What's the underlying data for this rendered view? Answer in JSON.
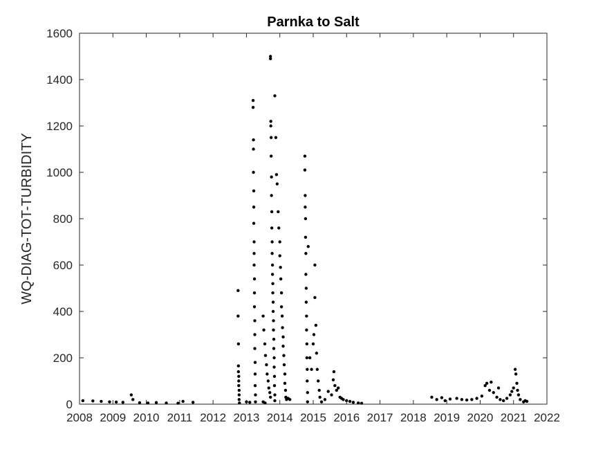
{
  "chart_data": {
    "type": "scatter",
    "title": "Parnka to Salt",
    "xlabel": "",
    "ylabel": "WQ-DIAG-TOT-TURBIDITY",
    "xlim": [
      2008,
      2022
    ],
    "ylim": [
      0,
      1600
    ],
    "xticks": [
      "2008",
      "2009",
      "2010",
      "2011",
      "2012",
      "2013",
      "2014",
      "2015",
      "2016",
      "2017",
      "2018",
      "2019",
      "2020",
      "2021",
      "2022"
    ],
    "yticks": [
      "0",
      "200",
      "400",
      "600",
      "800",
      "1000",
      "1200",
      "1400",
      "1600"
    ],
    "grid": false,
    "marker_color": "#000000",
    "series": [
      {
        "points": [
          [
            2008.1,
            15
          ],
          [
            2008.4,
            14
          ],
          [
            2008.65,
            12
          ],
          [
            2008.9,
            10
          ],
          [
            2009.1,
            9
          ],
          [
            2009.3,
            8
          ],
          [
            2009.55,
            40
          ],
          [
            2009.6,
            20
          ],
          [
            2009.8,
            6
          ],
          [
            2010.05,
            5
          ],
          [
            2010.3,
            7
          ],
          [
            2010.6,
            5
          ],
          [
            2010.95,
            4
          ],
          [
            2011.1,
            12
          ],
          [
            2011.4,
            8
          ],
          [
            2012.75,
            490
          ],
          [
            2012.75,
            380
          ],
          [
            2012.76,
            260
          ],
          [
            2012.76,
            165
          ],
          [
            2012.76,
            140
          ],
          [
            2012.77,
            120
          ],
          [
            2012.77,
            100
          ],
          [
            2012.77,
            80
          ],
          [
            2012.78,
            60
          ],
          [
            2012.78,
            40
          ],
          [
            2012.78,
            20
          ],
          [
            2012.79,
            5
          ],
          [
            2013.0,
            10
          ],
          [
            2013.1,
            8
          ],
          [
            2013.2,
            1310
          ],
          [
            2013.2,
            1280
          ],
          [
            2013.21,
            1140
          ],
          [
            2013.21,
            1100
          ],
          [
            2013.21,
            1000
          ],
          [
            2013.22,
            920
          ],
          [
            2013.22,
            850
          ],
          [
            2013.22,
            780
          ],
          [
            2013.23,
            700
          ],
          [
            2013.23,
            650
          ],
          [
            2013.23,
            600
          ],
          [
            2013.24,
            540
          ],
          [
            2013.24,
            480
          ],
          [
            2013.24,
            420
          ],
          [
            2013.25,
            360
          ],
          [
            2013.25,
            300
          ],
          [
            2013.25,
            240
          ],
          [
            2013.26,
            180
          ],
          [
            2013.26,
            130
          ],
          [
            2013.26,
            80
          ],
          [
            2013.27,
            40
          ],
          [
            2013.27,
            10
          ],
          [
            2013.5,
            380
          ],
          [
            2013.52,
            320
          ],
          [
            2013.55,
            260
          ],
          [
            2013.57,
            210
          ],
          [
            2013.6,
            170
          ],
          [
            2013.62,
            130
          ],
          [
            2013.65,
            100
          ],
          [
            2013.67,
            70
          ],
          [
            2013.7,
            50
          ],
          [
            2013.72,
            30
          ],
          [
            2013.5,
            10
          ],
          [
            2013.56,
            5
          ],
          [
            2013.72,
            1500
          ],
          [
            2013.72,
            1490
          ],
          [
            2013.73,
            1220
          ],
          [
            2013.73,
            1200
          ],
          [
            2013.74,
            1150
          ],
          [
            2013.74,
            1070
          ],
          [
            2013.75,
            980
          ],
          [
            2013.75,
            900
          ],
          [
            2013.76,
            830
          ],
          [
            2013.76,
            760
          ],
          [
            2013.77,
            700
          ],
          [
            2013.77,
            650
          ],
          [
            2013.78,
            600
          ],
          [
            2013.78,
            560
          ],
          [
            2013.79,
            520
          ],
          [
            2013.79,
            480
          ],
          [
            2013.8,
            440
          ],
          [
            2013.8,
            400
          ],
          [
            2013.81,
            360
          ],
          [
            2013.81,
            320
          ],
          [
            2013.82,
            280
          ],
          [
            2013.82,
            240
          ],
          [
            2013.83,
            200
          ],
          [
            2013.83,
            160
          ],
          [
            2013.84,
            120
          ],
          [
            2013.84,
            80
          ],
          [
            2013.85,
            40
          ],
          [
            2013.85,
            15
          ],
          [
            2013.85,
            1330
          ],
          [
            2013.88,
            1150
          ],
          [
            2013.9,
            990
          ],
          [
            2013.92,
            950
          ],
          [
            2013.95,
            830
          ],
          [
            2013.97,
            760
          ],
          [
            2014.0,
            700
          ],
          [
            2014.0,
            640
          ],
          [
            2014.02,
            590
          ],
          [
            2014.03,
            540
          ],
          [
            2014.05,
            480
          ],
          [
            2014.05,
            420
          ],
          [
            2014.07,
            380
          ],
          [
            2014.08,
            330
          ],
          [
            2014.1,
            290
          ],
          [
            2014.1,
            250
          ],
          [
            2014.12,
            210
          ],
          [
            2014.13,
            170
          ],
          [
            2014.15,
            130
          ],
          [
            2014.15,
            90
          ],
          [
            2014.17,
            60
          ],
          [
            2014.18,
            30
          ],
          [
            2014.2,
            20
          ],
          [
            2014.25,
            25
          ],
          [
            2014.3,
            20
          ],
          [
            2014.75,
            1070
          ],
          [
            2014.75,
            1010
          ],
          [
            2014.76,
            900
          ],
          [
            2014.76,
            850
          ],
          [
            2014.77,
            800
          ],
          [
            2014.77,
            720
          ],
          [
            2014.78,
            650
          ],
          [
            2014.78,
            560
          ],
          [
            2014.79,
            500
          ],
          [
            2014.79,
            440
          ],
          [
            2014.8,
            380
          ],
          [
            2014.8,
            320
          ],
          [
            2014.81,
            260
          ],
          [
            2014.81,
            200
          ],
          [
            2014.82,
            150
          ],
          [
            2014.82,
            100
          ],
          [
            2014.83,
            50
          ],
          [
            2014.83,
            10
          ],
          [
            2014.85,
            680
          ],
          [
            2014.9,
            200
          ],
          [
            2014.95,
            150
          ],
          [
            2015.0,
            260
          ],
          [
            2015.02,
            300
          ],
          [
            2015.05,
            600
          ],
          [
            2015.05,
            460
          ],
          [
            2015.08,
            340
          ],
          [
            2015.1,
            220
          ],
          [
            2015.12,
            150
          ],
          [
            2015.15,
            100
          ],
          [
            2015.18,
            60
          ],
          [
            2015.2,
            30
          ],
          [
            2015.25,
            10
          ],
          [
            2015.35,
            20
          ],
          [
            2015.45,
            55
          ],
          [
            2015.55,
            40
          ],
          [
            2015.6,
            105
          ],
          [
            2015.62,
            140
          ],
          [
            2015.65,
            80
          ],
          [
            2015.7,
            60
          ],
          [
            2015.75,
            70
          ],
          [
            2015.8,
            30
          ],
          [
            2015.85,
            25
          ],
          [
            2015.9,
            20
          ],
          [
            2016.0,
            15
          ],
          [
            2016.1,
            12
          ],
          [
            2016.2,
            8
          ],
          [
            2016.35,
            5
          ],
          [
            2016.45,
            4
          ],
          [
            2018.55,
            30
          ],
          [
            2018.7,
            20
          ],
          [
            2018.85,
            28
          ],
          [
            2018.95,
            15
          ],
          [
            2019.1,
            22
          ],
          [
            2019.3,
            25
          ],
          [
            2019.45,
            20
          ],
          [
            2019.6,
            18
          ],
          [
            2019.75,
            20
          ],
          [
            2019.9,
            25
          ],
          [
            2020.05,
            35
          ],
          [
            2020.15,
            80
          ],
          [
            2020.2,
            90
          ],
          [
            2020.28,
            60
          ],
          [
            2020.33,
            95
          ],
          [
            2020.4,
            50
          ],
          [
            2020.5,
            30
          ],
          [
            2020.55,
            70
          ],
          [
            2020.6,
            20
          ],
          [
            2020.7,
            15
          ],
          [
            2020.8,
            25
          ],
          [
            2020.9,
            40
          ],
          [
            2020.95,
            55
          ],
          [
            2021.0,
            70
          ],
          [
            2021.05,
            150
          ],
          [
            2021.07,
            130
          ],
          [
            2021.1,
            90
          ],
          [
            2021.12,
            60
          ],
          [
            2021.15,
            40
          ],
          [
            2021.2,
            20
          ],
          [
            2021.3,
            10
          ],
          [
            2021.35,
            15
          ],
          [
            2021.4,
            12
          ]
        ]
      }
    ]
  }
}
